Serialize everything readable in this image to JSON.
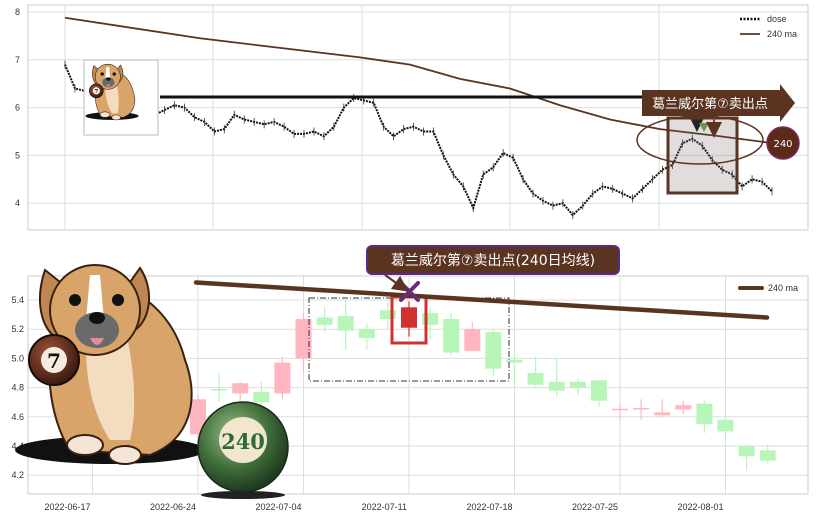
{
  "chart_data": [
    {
      "type": "line",
      "panel": "top",
      "yticks": [
        4,
        5,
        6,
        7,
        8
      ],
      "ylim": [
        3.6,
        8.15
      ],
      "grid": true,
      "legend": {
        "placement": "top-right",
        "entries": [
          "close",
          "240 ma"
        ]
      },
      "series": [
        {
          "name": "close",
          "style": "dotted",
          "color": "#111111",
          "values": [
            6.9,
            6.4,
            6.35,
            6.2,
            6.1,
            6.0,
            5.95,
            5.9,
            5.95,
            5.85,
            5.95,
            6.05,
            6.0,
            5.8,
            5.7,
            5.5,
            5.55,
            5.85,
            5.75,
            5.7,
            5.65,
            5.7,
            5.6,
            5.45,
            5.45,
            5.5,
            5.4,
            5.6,
            6.0,
            6.2,
            6.15,
            6.1,
            5.6,
            5.4,
            5.55,
            5.6,
            5.5,
            5.5,
            5.0,
            4.6,
            4.35,
            3.9,
            4.6,
            4.75,
            5.05,
            4.95,
            4.5,
            4.2,
            4.05,
            3.95,
            4.0,
            3.75,
            3.95,
            4.2,
            4.35,
            4.3,
            4.2,
            4.1,
            4.3,
            4.5,
            4.7,
            4.8,
            5.25,
            5.35,
            5.2,
            4.9,
            4.7,
            4.6,
            4.35,
            4.5,
            4.45,
            4.25
          ]
        },
        {
          "name": "240 ma",
          "color": "#5a3420",
          "values": [
            7.88,
            7.45,
            7.3,
            7.05,
            6.9,
            6.6,
            6.4,
            6.05,
            5.75,
            5.55,
            5.4,
            5.25
          ]
        }
      ],
      "annotations": {
        "sell_label": "葛兰威尔第⑦卖出点",
        "ma_badge": "240",
        "level_line_value": 6.2
      }
    },
    {
      "type": "candlestick",
      "panel": "bottom",
      "yticks": [
        4.2,
        4.4,
        4.6,
        4.8,
        5.0,
        5.2,
        5.4
      ],
      "ylim": [
        4.06,
        5.6
      ],
      "grid": true,
      "xtick_labels": [
        "2022-06-17",
        "2022-06-24",
        "2022-07-04",
        "2022-07-11",
        "2022-07-18",
        "2022-07-25",
        "2022-08-01"
      ],
      "legend": {
        "placement": "top-right",
        "entries": [
          "240 ma"
        ]
      },
      "candles": [
        {
          "date": "2022-06-24",
          "o": 4.48,
          "h": 4.75,
          "l": 4.45,
          "c": 4.72
        },
        {
          "date": "2022-06-27",
          "o": 4.79,
          "h": 4.9,
          "l": 4.7,
          "c": 4.78
        },
        {
          "date": "2022-06-28",
          "o": 4.76,
          "h": 4.84,
          "l": 4.71,
          "c": 4.83
        },
        {
          "date": "2022-06-29",
          "o": 4.77,
          "h": 4.84,
          "l": 4.67,
          "c": 4.7
        },
        {
          "date": "2022-06-30",
          "o": 4.76,
          "h": 5.01,
          "l": 4.72,
          "c": 4.97
        },
        {
          "date": "2022-07-04",
          "o": 5.0,
          "h": 5.31,
          "l": 4.9,
          "c": 5.27
        },
        {
          "date": "2022-07-05",
          "o": 5.28,
          "h": 5.35,
          "l": 5.18,
          "c": 5.23
        },
        {
          "date": "2022-07-06",
          "o": 5.29,
          "h": 5.4,
          "l": 5.06,
          "c": 5.19
        },
        {
          "date": "2022-07-07",
          "o": 5.2,
          "h": 5.24,
          "l": 5.06,
          "c": 5.14
        },
        {
          "date": "2022-07-08",
          "o": 5.33,
          "h": 5.38,
          "l": 5.2,
          "c": 5.27
        },
        {
          "date": "2022-07-11",
          "o": 5.21,
          "h": 5.39,
          "l": 5.15,
          "c": 5.35,
          "highlight": true
        },
        {
          "date": "2022-07-12",
          "o": 5.31,
          "h": 5.35,
          "l": 5.13,
          "c": 5.23
        },
        {
          "date": "2022-07-13",
          "o": 5.27,
          "h": 5.31,
          "l": 5.02,
          "c": 5.04
        },
        {
          "date": "2022-07-14",
          "o": 5.05,
          "h": 5.25,
          "l": 5.05,
          "c": 5.2
        },
        {
          "date": "2022-07-15",
          "o": 5.18,
          "h": 5.2,
          "l": 4.88,
          "c": 4.93
        },
        {
          "date": "2022-07-18",
          "o": 4.99,
          "h": 5.04,
          "l": 4.81,
          "c": 4.97
        },
        {
          "date": "2022-07-19",
          "o": 4.9,
          "h": 5.01,
          "l": 4.81,
          "c": 4.82
        },
        {
          "date": "2022-07-20",
          "o": 4.84,
          "h": 5.0,
          "l": 4.74,
          "c": 4.78
        },
        {
          "date": "2022-07-21",
          "o": 4.84,
          "h": 4.86,
          "l": 4.75,
          "c": 4.8
        },
        {
          "date": "2022-07-22",
          "o": 4.85,
          "h": 4.85,
          "l": 4.67,
          "c": 4.71
        },
        {
          "date": "2022-07-25",
          "o": 4.65,
          "h": 4.7,
          "l": 4.58,
          "c": 4.655
        },
        {
          "date": "2022-07-26",
          "o": 4.65,
          "h": 4.72,
          "l": 4.58,
          "c": 4.66
        },
        {
          "date": "2022-07-27",
          "o": 4.61,
          "h": 4.72,
          "l": 4.6,
          "c": 4.63
        },
        {
          "date": "2022-07-28",
          "o": 4.65,
          "h": 4.71,
          "l": 4.62,
          "c": 4.68
        },
        {
          "date": "2022-07-29",
          "o": 4.69,
          "h": 4.71,
          "l": 4.49,
          "c": 4.55
        },
        {
          "date": "2022-08-01",
          "o": 4.58,
          "h": 4.58,
          "l": 4.42,
          "c": 4.5
        },
        {
          "date": "2022-08-02",
          "o": 4.4,
          "h": 4.4,
          "l": 4.23,
          "c": 4.33
        },
        {
          "date": "2022-08-03",
          "o": 4.37,
          "h": 4.41,
          "l": 4.28,
          "c": 4.3
        }
      ],
      "ma240": {
        "name": "240 ma",
        "color": "#5a3420",
        "start": 5.52,
        "end": 5.28
      },
      "colors": {
        "up": "#ffb6c1",
        "down": "#b8f5b8",
        "highlight": "#d03030"
      },
      "annotations": {
        "title_label": "葛兰威尔第⑦卖出点(240日均线)",
        "ball_7": "7",
        "ball_240": "240"
      }
    }
  ]
}
